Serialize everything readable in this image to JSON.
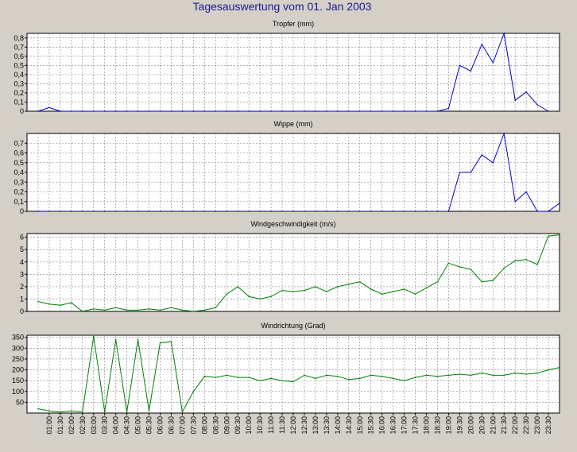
{
  "title": "Tagesauswertung vom 01. Jan 2003",
  "colors": {
    "background": "#d4d0c8",
    "plot": "#ffffff",
    "grid": "#808080",
    "title_text": "#1a1a8c",
    "rain": "#0000cc",
    "wind": "#008000"
  },
  "x_ticks": [
    "01:00",
    "01:30",
    "02:00",
    "02:30",
    "03:00",
    "03:30",
    "04:00",
    "04:30",
    "05:00",
    "05:30",
    "06:00",
    "06:30",
    "07:00",
    "07:30",
    "08:00",
    "08:30",
    "09:00",
    "09:30",
    "10:00",
    "10:30",
    "11:00",
    "11:30",
    "12:00",
    "12:30",
    "13:00",
    "13:30",
    "14:00",
    "14:30",
    "15:00",
    "15:30",
    "16:00",
    "16:30",
    "17:00",
    "17:30",
    "18:00",
    "18:30",
    "19:00",
    "19:30",
    "20:00",
    "20:30",
    "21:00",
    "21:30",
    "22:00",
    "22:30",
    "23:00",
    "23:30"
  ],
  "chart_data": [
    {
      "type": "line",
      "title": "Tropfer (mm)",
      "x": [
        "00:30",
        "01:00",
        "01:30",
        "02:00",
        "02:30",
        "03:00",
        "03:30",
        "04:00",
        "04:30",
        "05:00",
        "05:30",
        "06:00",
        "06:30",
        "07:00",
        "07:30",
        "08:00",
        "08:30",
        "09:00",
        "09:30",
        "10:00",
        "10:30",
        "11:00",
        "11:30",
        "12:00",
        "12:30",
        "13:00",
        "13:30",
        "14:00",
        "14:30",
        "15:00",
        "15:30",
        "16:00",
        "16:30",
        "17:00",
        "17:30",
        "18:00",
        "18:30",
        "19:00",
        "19:30",
        "20:00",
        "20:30",
        "21:00",
        "21:30",
        "22:00",
        "22:30",
        "23:00",
        "23:30"
      ],
      "series": [
        {
          "values": [
            0,
            0.04,
            0,
            0,
            0,
            0,
            0,
            0,
            0,
            0,
            0,
            0,
            0,
            0,
            0,
            0,
            0,
            0,
            0,
            0,
            0,
            0,
            0,
            0,
            0,
            0,
            0,
            0,
            0,
            0,
            0,
            0,
            0,
            0,
            0,
            0,
            0,
            0.03,
            0.5,
            0.44,
            0.73,
            0.53,
            0.85,
            0.12,
            0.21,
            0.07,
            0
          ]
        }
      ],
      "ylim": [
        0,
        0.85
      ],
      "yticks": [
        "0",
        "0,1",
        "0,2",
        "0,3",
        "0,4",
        "0,5",
        "0,6",
        "0,7",
        "0,8"
      ],
      "color": "#0000cc"
    },
    {
      "type": "line",
      "title": "Wippe (mm)",
      "x": [
        "00:30",
        "01:00",
        "01:30",
        "02:00",
        "02:30",
        "03:00",
        "03:30",
        "04:00",
        "04:30",
        "05:00",
        "05:30",
        "06:00",
        "06:30",
        "07:00",
        "07:30",
        "08:00",
        "08:30",
        "09:00",
        "09:30",
        "10:00",
        "10:30",
        "11:00",
        "11:30",
        "12:00",
        "12:30",
        "13:00",
        "13:30",
        "14:00",
        "14:30",
        "15:00",
        "15:30",
        "16:00",
        "16:30",
        "17:00",
        "17:30",
        "18:00",
        "18:30",
        "19:00",
        "19:30",
        "20:00",
        "20:30",
        "21:00",
        "21:30",
        "22:00",
        "22:30",
        "23:00",
        "23:30",
        "23:59"
      ],
      "series": [
        {
          "values": [
            0,
            0,
            0,
            0,
            0,
            0,
            0,
            0,
            0,
            0,
            0,
            0,
            0,
            0,
            0,
            0,
            0,
            0,
            0,
            0,
            0,
            0,
            0,
            0,
            0,
            0,
            0,
            0,
            0,
            0,
            0,
            0,
            0,
            0,
            0,
            0,
            0,
            0,
            0.4,
            0.4,
            0.58,
            0.5,
            0.8,
            0.1,
            0.2,
            0,
            0,
            0.08
          ]
        }
      ],
      "ylim": [
        0,
        0.8
      ],
      "yticks": [
        "0",
        "0,1",
        "0,2",
        "0,3",
        "0,4",
        "0,5",
        "0,6",
        "0,7"
      ],
      "color": "#0000cc"
    },
    {
      "type": "line",
      "title": "Windgeschwindigkeit (m/s)",
      "x": [
        "00:30",
        "01:00",
        "01:30",
        "02:00",
        "02:30",
        "03:00",
        "03:30",
        "04:00",
        "04:30",
        "05:00",
        "05:30",
        "06:00",
        "06:30",
        "07:00",
        "07:30",
        "08:00",
        "08:30",
        "09:00",
        "09:30",
        "10:00",
        "10:30",
        "11:00",
        "11:30",
        "12:00",
        "12:30",
        "13:00",
        "13:30",
        "14:00",
        "14:30",
        "15:00",
        "15:30",
        "16:00",
        "16:30",
        "17:00",
        "17:30",
        "18:00",
        "18:30",
        "19:00",
        "19:30",
        "20:00",
        "20:30",
        "21:00",
        "21:30",
        "22:00",
        "22:30",
        "23:00",
        "23:30",
        "23:59"
      ],
      "series": [
        {
          "values": [
            0.8,
            0.6,
            0.5,
            0.7,
            0,
            0.2,
            0.1,
            0.3,
            0.1,
            0.1,
            0.2,
            0.1,
            0.3,
            0.1,
            0,
            0.1,
            0.3,
            1.4,
            2,
            1.2,
            1,
            1.2,
            1.7,
            1.6,
            1.7,
            2,
            1.6,
            2,
            2.2,
            2.4,
            1.8,
            1.4,
            1.6,
            1.8,
            1.4,
            1.9,
            2.4,
            3.9,
            3.6,
            3.4,
            2.4,
            2.5,
            3.5,
            4.1,
            4.2,
            3.8,
            6.1,
            6.2
          ]
        }
      ],
      "ylim": [
        0,
        6.3
      ],
      "yticks": [
        "0",
        "1",
        "2",
        "3",
        "4",
        "5",
        "6"
      ],
      "color": "#008000"
    },
    {
      "type": "line",
      "title": "Windrichtung (Grad)",
      "x": [
        "00:30",
        "01:00",
        "01:30",
        "02:00",
        "02:30",
        "03:00",
        "03:30",
        "04:00",
        "04:30",
        "05:00",
        "05:30",
        "06:00",
        "06:30",
        "07:00",
        "07:30",
        "08:00",
        "08:30",
        "09:00",
        "09:30",
        "10:00",
        "10:30",
        "11:00",
        "11:30",
        "12:00",
        "12:30",
        "13:00",
        "13:30",
        "14:00",
        "14:30",
        "15:00",
        "15:30",
        "16:00",
        "16:30",
        "17:00",
        "17:30",
        "18:00",
        "18:30",
        "19:00",
        "19:30",
        "20:00",
        "20:30",
        "21:00",
        "21:30",
        "22:00",
        "22:30",
        "23:00",
        "23:30",
        "23:59"
      ],
      "series": [
        {
          "values": [
            20,
            10,
            5,
            10,
            5,
            355,
            5,
            340,
            5,
            340,
            10,
            325,
            330,
            5,
            100,
            170,
            165,
            175,
            165,
            165,
            150,
            160,
            150,
            145,
            175,
            160,
            175,
            170,
            155,
            160,
            175,
            170,
            160,
            150,
            165,
            175,
            170,
            175,
            180,
            175,
            185,
            175,
            175,
            185,
            180,
            185,
            200,
            210
          ]
        }
      ],
      "ylim": [
        0,
        360
      ],
      "yticks": [
        "50",
        "100",
        "150",
        "200",
        "250",
        "300",
        "350"
      ],
      "ytick_values": [
        50,
        100,
        150,
        200,
        250,
        300,
        350
      ],
      "color": "#008000"
    }
  ]
}
